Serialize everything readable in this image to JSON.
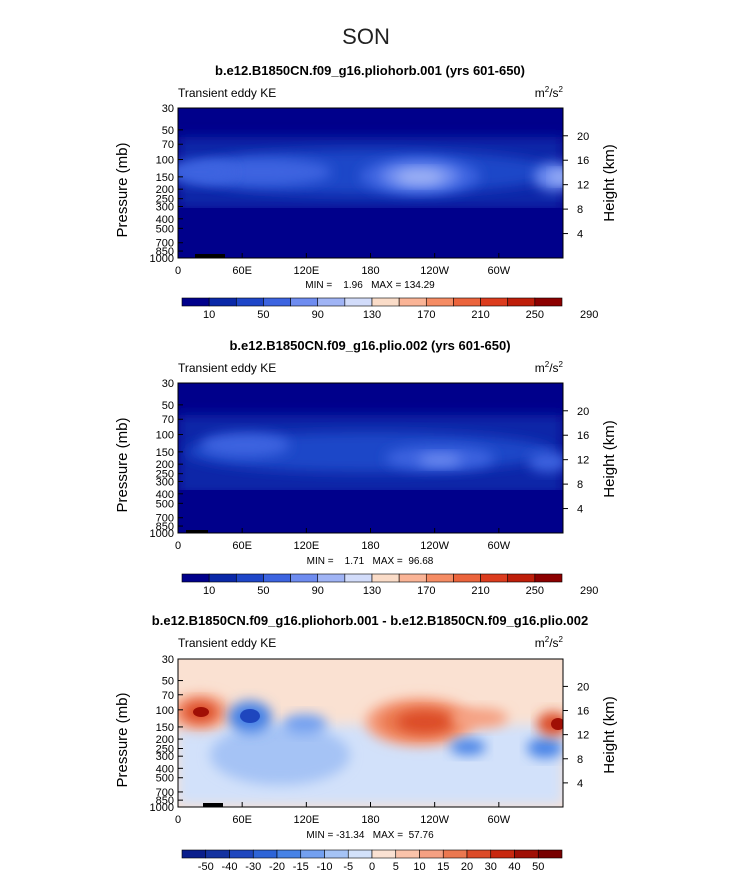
{
  "page_title": "SON",
  "chart_data": [
    {
      "type": "heatmap",
      "title": "b.e12.B1850CN.f09_g16.pliohorb.001 (yrs 601-650)",
      "field_label": "Transient eddy KE",
      "units": "m²/s²",
      "units_base": "m",
      "units_mid": "2",
      "units_sep": "/s",
      "units_end": "2",
      "ylabel": "Pressure (mb)",
      "ylabel_right": "Height (km)",
      "y_ticks": [
        "30",
        "50",
        "70",
        "100",
        "150",
        "200",
        "250",
        "300",
        "400",
        "500",
        "700",
        "850",
        "1000"
      ],
      "y_ticks_right": [
        "20",
        "16",
        "12",
        "8",
        "4"
      ],
      "x_ticks": [
        "0",
        "60E",
        "120E",
        "180",
        "120W",
        "60W"
      ],
      "stats": "MIN =    1.96   MAX = 134.29",
      "colorbar_labels": [
        "10",
        "50",
        "90",
        "130",
        "170",
        "210",
        "250",
        "290"
      ],
      "colorbar_colors": [
        "#00008B",
        "#0A28A8",
        "#1E46C8",
        "#3C64E0",
        "#6E8CF0",
        "#A0B4F5",
        "#D2DCFA",
        "#FADCC8",
        "#FAB496",
        "#F58C64",
        "#EB643C",
        "#DC3C1E",
        "#BE1E0A",
        "#8C0000"
      ],
      "features": [
        {
          "lon": 180,
          "p": 150,
          "value": 120
        },
        {
          "lon": 355,
          "p": 150,
          "value": 110
        },
        {
          "lon": 30,
          "p": 150,
          "value": 80
        },
        {
          "lon": 100,
          "p": 150,
          "value": 70
        }
      ]
    },
    {
      "type": "heatmap",
      "title": "b.e12.B1850CN.f09_g16.plio.002 (yrs 601-650)",
      "field_label": "Transient eddy KE",
      "units": "m²/s²",
      "units_base": "m",
      "units_mid": "2",
      "units_sep": "/s",
      "units_end": "2",
      "ylabel": "Pressure (mb)",
      "ylabel_right": "Height (km)",
      "y_ticks": [
        "30",
        "50",
        "70",
        "100",
        "150",
        "200",
        "250",
        "300",
        "400",
        "500",
        "700",
        "850",
        "1000"
      ],
      "y_ticks_right": [
        "20",
        "16",
        "12",
        "8",
        "4"
      ],
      "x_ticks": [
        "0",
        "60E",
        "120E",
        "180",
        "120W",
        "60W"
      ],
      "stats": "MIN =    1.71   MAX =  96.68",
      "colorbar_labels": [
        "10",
        "50",
        "90",
        "130",
        "170",
        "210",
        "250",
        "290"
      ],
      "colorbar_colors": [
        "#00008B",
        "#0A28A8",
        "#1E46C8",
        "#3C64E0",
        "#6E8CF0",
        "#A0B4F5",
        "#D2DCFA",
        "#FADCC8",
        "#FAB496",
        "#F58C64",
        "#EB643C",
        "#DC3C1E",
        "#BE1E0A",
        "#8C0000"
      ],
      "features": [
        {
          "lon": 240,
          "p": 200,
          "value": 85
        },
        {
          "lon": 70,
          "p": 150,
          "value": 65
        },
        {
          "lon": 355,
          "p": 200,
          "value": 60
        }
      ]
    },
    {
      "type": "heatmap",
      "title": "b.e12.B1850CN.f09_g16.pliohorb.001 - b.e12.B1850CN.f09_g16.plio.002",
      "field_label": "Transient eddy KE",
      "units": "m²/s²",
      "units_base": "m",
      "units_mid": "2",
      "units_sep": "/s",
      "units_end": "2",
      "ylabel": "Pressure (mb)",
      "ylabel_right": "Height (km)",
      "y_ticks": [
        "30",
        "50",
        "70",
        "100",
        "150",
        "200",
        "250",
        "300",
        "400",
        "500",
        "700",
        "850",
        "1000"
      ],
      "y_ticks_right": [
        "20",
        "16",
        "12",
        "8",
        "4"
      ],
      "x_ticks": [
        "0",
        "60E",
        "120E",
        "180",
        "120W",
        "60W"
      ],
      "stats": "MIN = -31.34   MAX =  57.76",
      "colorbar_labels": [
        "-50",
        "-40",
        "-30",
        "-20",
        "-15",
        "-10",
        "-5",
        "0",
        "5",
        "10",
        "15",
        "20",
        "30",
        "40",
        "50"
      ],
      "colorbar_colors": [
        "#0A1E8C",
        "#1432A0",
        "#1E46BE",
        "#2D64D7",
        "#4682E6",
        "#73A0F0",
        "#A5C3F5",
        "#D2E1FA",
        "#FAE1D2",
        "#FAC3AA",
        "#F5A082",
        "#EB7850",
        "#DC4B28",
        "#C8280F",
        "#A00F05",
        "#780000"
      ],
      "features": [
        {
          "lon": 165,
          "p": 120,
          "value": 40
        },
        {
          "lon": 20,
          "p": 100,
          "value": 45
        },
        {
          "lon": 355,
          "p": 130,
          "value": 50
        },
        {
          "lon": 65,
          "p": 120,
          "value": -30
        },
        {
          "lon": 240,
          "p": 230,
          "value": -25
        }
      ]
    }
  ]
}
